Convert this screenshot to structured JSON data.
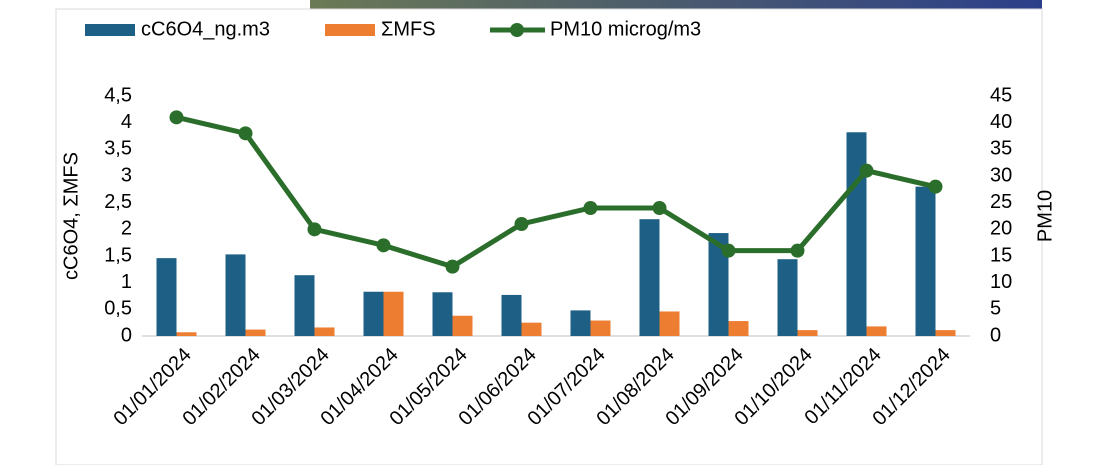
{
  "chart_data": {
    "type": "combo",
    "categories": [
      "01/01/2024",
      "01/02/2024",
      "01/03/2024",
      "01/04/2024",
      "01/05/2024",
      "01/06/2024",
      "01/07/2024",
      "01/08/2024",
      "01/09/2024",
      "01/10/2024",
      "01/11/2024",
      "01/12/2024"
    ],
    "series": [
      {
        "name": "cC6O4_ng.m3",
        "type": "bar",
        "color": "#1d5f85",
        "values": [
          1.46,
          1.53,
          1.14,
          0.83,
          0.82,
          0.77,
          0.48,
          2.19,
          1.93,
          1.44,
          3.82,
          2.8
        ]
      },
      {
        "name": "ΣMFS",
        "type": "bar",
        "color": "#ed7d31",
        "values": [
          0.07,
          0.12,
          0.16,
          0.83,
          0.38,
          0.25,
          0.29,
          0.46,
          0.28,
          0.11,
          0.18,
          0.11
        ]
      },
      {
        "name": "PM10 microg/m3",
        "type": "line",
        "axis": "y2",
        "color": "#2b6e2b",
        "values": [
          41,
          38,
          20,
          17,
          13,
          21,
          24,
          24,
          16,
          16,
          31,
          28
        ]
      }
    ],
    "y_label": "cC6O4, ΣMFS",
    "y2_label": "PM10",
    "ylim": [
      0,
      4.5
    ],
    "yticks": [
      0,
      {
        "value": 0.5,
        "label": "0,5"
      },
      1,
      {
        "value": 1.5,
        "label": "1,5"
      },
      2,
      {
        "value": 2.5,
        "label": "2,5"
      },
      3,
      {
        "value": 3.5,
        "label": "3,5"
      },
      4,
      {
        "value": 4.5,
        "label": "4,5"
      }
    ],
    "y2lim": [
      0,
      45
    ],
    "y2ticks": [
      0,
      5,
      10,
      15,
      20,
      25,
      30,
      35,
      40,
      45
    ],
    "legend": "top"
  }
}
